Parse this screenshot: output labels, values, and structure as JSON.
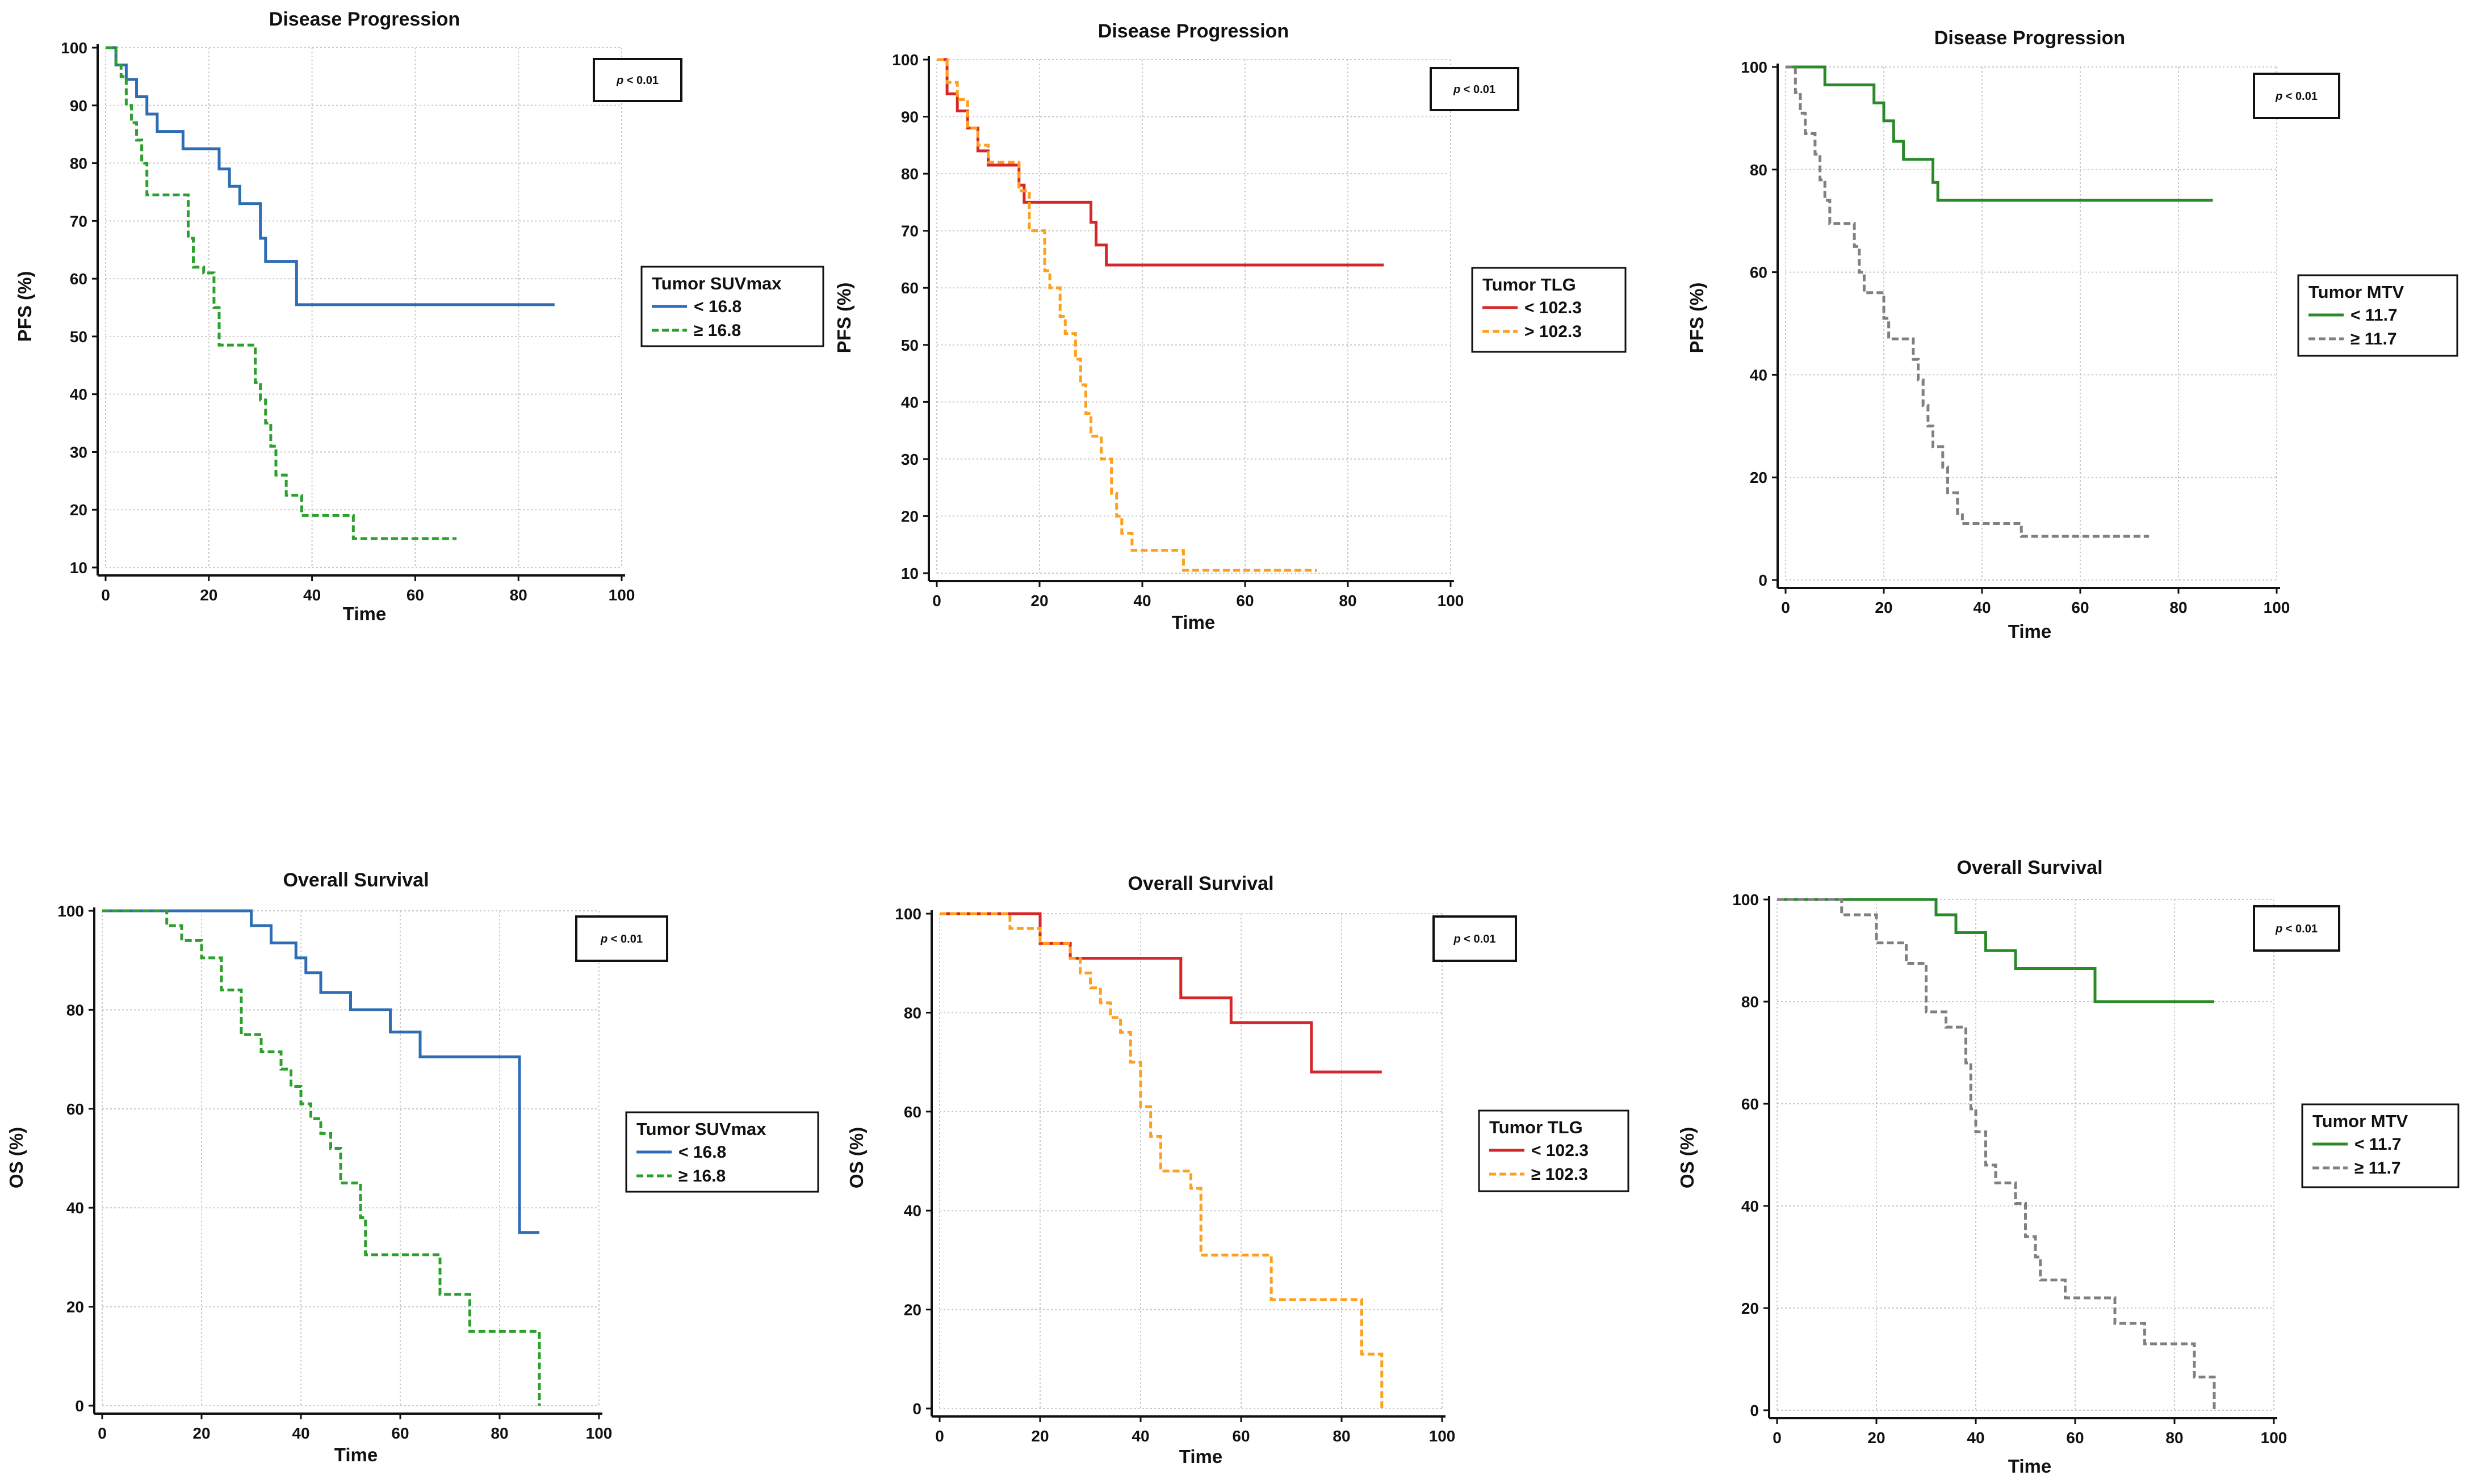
{
  "chart_data": [
    {
      "type": "line",
      "title": "Disease Progression",
      "xlabel": "Time",
      "ylabel": "PFS (%)",
      "xlim": [
        0,
        100
      ],
      "ylim": [
        10,
        100
      ],
      "xticks": [
        "0",
        "20",
        "40",
        "60",
        "80",
        "100"
      ],
      "yticks": [
        "10",
        "20",
        "30",
        "40",
        "50",
        "60",
        "70",
        "80",
        "90",
        "100"
      ],
      "p_value": {
        "symbol": "p",
        "text": "< 0.01"
      },
      "legend_title": "Tumor SUVmax",
      "series": [
        {
          "name": "< 16.8",
          "color": "#2e6db4",
          "dash": "solid",
          "x": [
            0,
            2,
            4,
            6,
            8,
            10,
            12,
            15,
            19,
            22,
            24,
            26,
            29,
            30,
            31,
            34,
            37,
            87
          ],
          "y": [
            100,
            97,
            94.5,
            91.5,
            88.5,
            85.5,
            85.5,
            82.5,
            82.5,
            79,
            76,
            73,
            73,
            67,
            63,
            63,
            55.5,
            55.5
          ]
        },
        {
          "name": "≥ 16.8",
          "color": "#2ca02c",
          "dash": "dashed",
          "x": [
            0,
            2,
            3,
            4,
            5,
            6,
            7,
            8,
            14,
            16,
            17,
            19,
            21,
            22,
            28,
            29,
            30,
            31,
            32,
            33,
            35,
            38,
            48,
            68
          ],
          "y": [
            100,
            97,
            95,
            90,
            87,
            84,
            80,
            74.5,
            74.5,
            67,
            62,
            61,
            55,
            48.5,
            48.5,
            42,
            39,
            35,
            31,
            26,
            22.5,
            19,
            15,
            15
          ]
        }
      ]
    },
    {
      "type": "line",
      "title": "Disease Progression",
      "xlabel": "Time",
      "ylabel": "PFS (%)",
      "xlim": [
        0,
        100
      ],
      "ylim": [
        10,
        100
      ],
      "xticks": [
        "0",
        "20",
        "40",
        "60",
        "80",
        "100"
      ],
      "yticks": [
        "10",
        "20",
        "30",
        "40",
        "50",
        "60",
        "70",
        "80",
        "90",
        "100"
      ],
      "p_value": {
        "symbol": "p",
        "text": "< 0.01"
      },
      "legend_title": "Tumor TLG",
      "series": [
        {
          "name": "< 102.3",
          "color": "#d62728",
          "dash": "solid",
          "x": [
            0,
            2,
            4,
            6,
            8,
            10,
            16,
            17,
            28,
            30,
            31,
            33,
            87
          ],
          "y": [
            100,
            94,
            91,
            88,
            84,
            81.5,
            78,
            75,
            75,
            71.5,
            67.5,
            64,
            64
          ]
        },
        {
          "name": "> 102.3",
          "color": "#ff9f1c",
          "dash": "dashed",
          "x": [
            0,
            2,
            4,
            6,
            8,
            10,
            16,
            18,
            21,
            22,
            24,
            25,
            27,
            28,
            29,
            30,
            32,
            34,
            35,
            36,
            38,
            48,
            74
          ],
          "y": [
            100,
            96,
            93,
            88,
            85,
            82,
            77,
            70,
            63,
            60,
            55,
            52,
            47.5,
            43,
            38,
            34,
            30,
            24,
            20,
            17,
            14,
            10.5,
            10.5
          ]
        }
      ]
    },
    {
      "type": "line",
      "title": "Disease Progression",
      "xlabel": "Time",
      "ylabel": "PFS (%)",
      "xlim": [
        0,
        100
      ],
      "ylim": [
        0,
        100
      ],
      "xticks": [
        "0",
        "20",
        "40",
        "60",
        "80",
        "100"
      ],
      "yticks": [
        "0",
        "20",
        "40",
        "60",
        "80",
        "100"
      ],
      "p_value": {
        "symbol": "p",
        "text": "< 0.01"
      },
      "legend_title": "Tumor MTV",
      "series": [
        {
          "name": "< 11.7",
          "color": "#2a8a2a",
          "dash": "solid",
          "x": [
            0,
            8,
            14,
            18,
            20,
            22,
            24,
            28,
            30,
            31,
            87
          ],
          "y": [
            100,
            96.5,
            96.5,
            93,
            89.5,
            85.5,
            82,
            82,
            77.5,
            74,
            74
          ]
        },
        {
          "name": "≥ 11.7",
          "color": "#808080",
          "dash": "dashed",
          "x": [
            0,
            2,
            3,
            4,
            6,
            7,
            8,
            9,
            10,
            14,
            15,
            16,
            20,
            21,
            26,
            27,
            28,
            29,
            30,
            32,
            33,
            35,
            36,
            38,
            48,
            74
          ],
          "y": [
            100,
            95,
            91,
            87,
            83,
            78,
            74,
            69.5,
            69.5,
            65,
            60,
            56,
            51,
            47,
            43,
            39,
            34,
            30,
            26,
            22,
            17,
            13,
            11,
            11,
            8.5,
            8.5
          ]
        }
      ]
    },
    {
      "type": "line",
      "title": "Overall Survival",
      "xlabel": "Time",
      "ylabel": "OS (%)",
      "xlim": [
        0,
        100
      ],
      "ylim": [
        0,
        100
      ],
      "xticks": [
        "0",
        "20",
        "40",
        "60",
        "80",
        "100"
      ],
      "yticks": [
        "0",
        "20",
        "40",
        "60",
        "80",
        "100"
      ],
      "p_value": {
        "symbol": "p",
        "text": "< 0.01"
      },
      "legend_title": "Tumor SUVmax",
      "series": [
        {
          "name": "< 16.8",
          "color": "#2e6db4",
          "dash": "solid",
          "x": [
            0,
            30,
            34,
            39,
            41,
            44,
            50,
            58,
            64,
            84,
            88
          ],
          "y": [
            100,
            97,
            93.5,
            90.5,
            87.5,
            83.5,
            80,
            75.5,
            70.5,
            35,
            35
          ]
        },
        {
          "name": "≥ 16.8",
          "color": "#2ca02c",
          "dash": "dashed",
          "x": [
            0,
            13,
            16,
            20,
            24,
            28,
            32,
            36,
            38,
            40,
            42,
            44,
            46,
            48,
            52,
            53,
            68,
            74,
            88,
            88
          ],
          "y": [
            100,
            97,
            94,
            90.5,
            84,
            75,
            71.5,
            68,
            64.5,
            61,
            58,
            55,
            52,
            45,
            38,
            30.5,
            22.5,
            15,
            15,
            0
          ]
        }
      ]
    },
    {
      "type": "line",
      "title": "Overall Survival",
      "xlabel": "Time",
      "ylabel": "OS (%)",
      "xlim": [
        0,
        100
      ],
      "ylim": [
        0,
        100
      ],
      "xticks": [
        "0",
        "20",
        "40",
        "60",
        "80",
        "100"
      ],
      "yticks": [
        "0",
        "20",
        "40",
        "60",
        "80",
        "100"
      ],
      "p_value": {
        "symbol": "p",
        "text": "< 0.01"
      },
      "legend_title": "Tumor TLG",
      "series": [
        {
          "name": "< 102.3",
          "color": "#d62728",
          "dash": "solid",
          "x": [
            0,
            20,
            26,
            46,
            48,
            58,
            74,
            88
          ],
          "y": [
            100,
            94,
            91,
            91,
            83,
            78,
            68,
            68
          ]
        },
        {
          "name": "≥ 102.3",
          "color": "#ff9f1c",
          "dash": "dashed",
          "x": [
            0,
            14,
            20,
            26,
            28,
            30,
            32,
            34,
            36,
            38,
            40,
            42,
            44,
            46,
            50,
            52,
            60,
            66,
            84,
            86,
            88
          ],
          "y": [
            100,
            97,
            94,
            91,
            88,
            85,
            82,
            79,
            76,
            70,
            61,
            55,
            48,
            48,
            44.5,
            31,
            31,
            22,
            11,
            11,
            0
          ]
        }
      ]
    },
    {
      "type": "line",
      "title": "Overall Survival",
      "xlabel": "Time",
      "ylabel": "OS (%)",
      "xlim": [
        0,
        100
      ],
      "ylim": [
        0,
        100
      ],
      "xticks": [
        "0",
        "20",
        "40",
        "60",
        "80",
        "100"
      ],
      "yticks": [
        "0",
        "20",
        "40",
        "60",
        "80",
        "100"
      ],
      "p_value": {
        "symbol": "p",
        "text": "< 0.01"
      },
      "legend_title": "Tumor MTV",
      "series": [
        {
          "name": "< 11.7",
          "color": "#2a8a2a",
          "dash": "solid",
          "x": [
            0,
            32,
            36,
            42,
            48,
            64,
            88
          ],
          "y": [
            100,
            97,
            93.5,
            90,
            86.5,
            80,
            80
          ]
        },
        {
          "name": "≥ 11.7",
          "color": "#808080",
          "dash": "dashed",
          "x": [
            0,
            13,
            20,
            26,
            30,
            34,
            38,
            39,
            40,
            42,
            44,
            48,
            50,
            52,
            53,
            58,
            68,
            74,
            84,
            88
          ],
          "y": [
            100,
            97,
            91.5,
            87.5,
            78,
            75,
            68,
            59,
            54.5,
            48,
            44.5,
            40.5,
            34,
            30,
            25.5,
            22,
            17,
            13,
            6.5,
            0
          ]
        }
      ]
    }
  ]
}
